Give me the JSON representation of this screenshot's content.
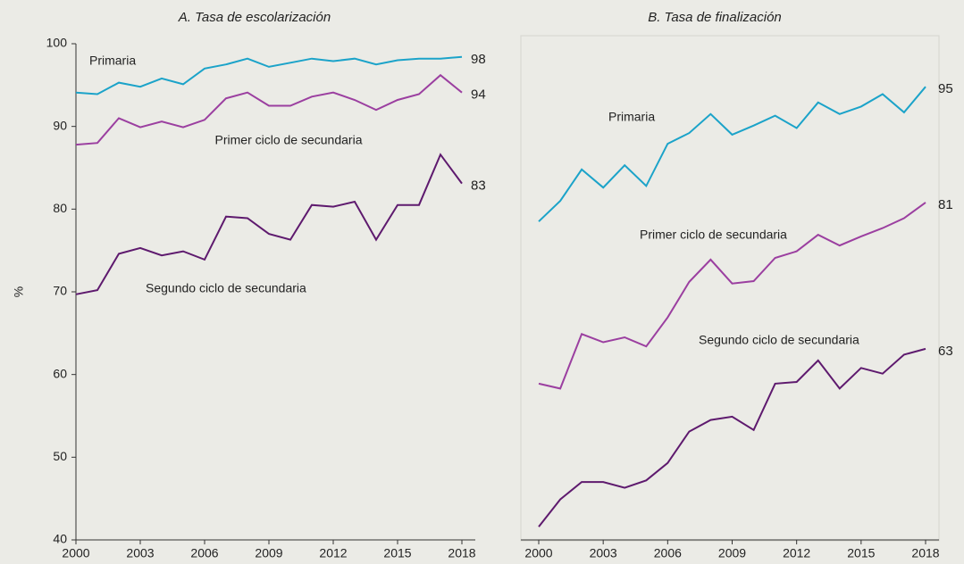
{
  "chart_data": [
    {
      "type": "line",
      "title": "A. Tasa de escolarización",
      "y_label": "%",
      "x": [
        2000,
        2001,
        2002,
        2003,
        2004,
        2005,
        2006,
        2007,
        2008,
        2009,
        2010,
        2011,
        2012,
        2013,
        2014,
        2015,
        2016,
        2017,
        2018
      ],
      "xlim": [
        2000,
        2018
      ],
      "xticks": [
        2000,
        2003,
        2006,
        2009,
        2012,
        2015,
        2018
      ],
      "ylim": [
        40,
        100
      ],
      "yticks": [
        40,
        50,
        60,
        70,
        80,
        90,
        100
      ],
      "series": [
        {
          "name": "Primaria",
          "color": "#1ba3c9",
          "end_label": "98",
          "values": [
            94.1,
            93.9,
            95.3,
            94.8,
            95.8,
            95.1,
            97.0,
            97.5,
            98.2,
            97.2,
            97.7,
            98.2,
            97.9,
            98.2,
            97.5,
            98.0,
            98.2,
            98.2,
            98.4
          ]
        },
        {
          "name": "Primer ciclo de secundaria",
          "color": "#9b3fa0",
          "end_label": "94",
          "values": [
            87.8,
            88.0,
            91.0,
            89.9,
            90.6,
            89.9,
            90.8,
            93.4,
            94.1,
            92.5,
            92.5,
            93.6,
            94.1,
            93.2,
            92.0,
            93.2,
            93.9,
            96.2,
            94.1
          ]
        },
        {
          "name": "Segundo ciclo de secundaria",
          "color": "#5e1a6e",
          "end_label": "83",
          "values": [
            69.7,
            70.2,
            74.6,
            75.3,
            74.4,
            74.9,
            73.9,
            79.1,
            78.9,
            77.0,
            76.3,
            80.5,
            80.3,
            80.9,
            76.3,
            80.5,
            80.5,
            86.6,
            83.1
          ]
        }
      ]
    },
    {
      "type": "line",
      "title": "B. Tasa de finalización",
      "x": [
        2000,
        2001,
        2002,
        2003,
        2004,
        2005,
        2006,
        2007,
        2008,
        2009,
        2010,
        2011,
        2012,
        2013,
        2014,
        2015,
        2016,
        2017,
        2018
      ],
      "xlim": [
        2000,
        2018
      ],
      "xticks": [
        2000,
        2003,
        2006,
        2009,
        2012,
        2015,
        2018
      ],
      "ylim": [
        40,
        100
      ],
      "series": [
        {
          "name": "Primaria",
          "color": "#1ba3c9",
          "end_label": "95",
          "values": [
            78.5,
            81.0,
            84.8,
            82.6,
            85.3,
            82.8,
            87.9,
            89.2,
            91.5,
            89.0,
            90.1,
            91.3,
            89.8,
            92.9,
            91.5,
            92.4,
            93.9,
            91.7,
            94.8
          ]
        },
        {
          "name": "Primer ciclo de secundaria",
          "color": "#9b3fa0",
          "end_label": "81",
          "values": [
            58.9,
            58.3,
            64.9,
            63.9,
            64.5,
            63.4,
            66.9,
            71.2,
            73.9,
            71.0,
            71.3,
            74.1,
            74.9,
            76.9,
            75.6,
            76.7,
            77.7,
            78.9,
            80.8
          ]
        },
        {
          "name": "Segundo ciclo de secundaria",
          "color": "#5e1a6e",
          "end_label": "63",
          "values": [
            41.6,
            44.9,
            47.0,
            47.0,
            46.3,
            47.2,
            49.3,
            53.1,
            54.5,
            54.9,
            53.3,
            58.9,
            59.1,
            61.7,
            58.3,
            60.8,
            60.1,
            62.4,
            63.1
          ]
        }
      ]
    }
  ]
}
